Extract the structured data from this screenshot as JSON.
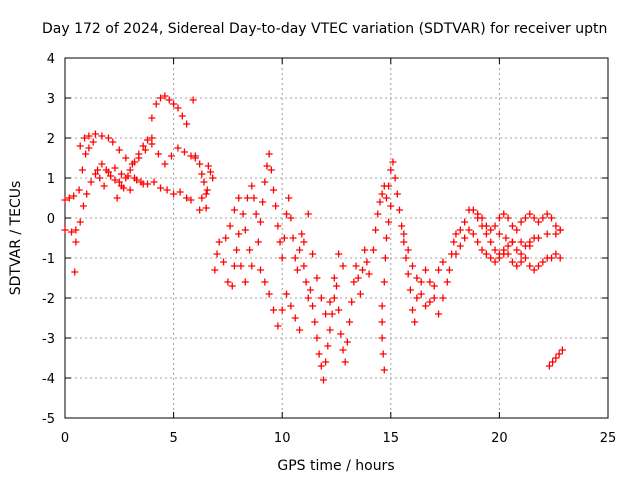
{
  "chart_data": {
    "type": "scatter",
    "title": "Day 172 of 2024, Sidereal Day-to-day VTEC variation (SDTVAR) for receiver uptn",
    "xlabel": "GPS time / hours",
    "ylabel": "SDTVAR / TECUs",
    "xlim": [
      0,
      25
    ],
    "ylim": [
      -5,
      4
    ],
    "xticks": [
      "0",
      "5",
      "10",
      "15",
      "20",
      "25"
    ],
    "yticks": [
      "4",
      "3",
      "2",
      "1",
      "0",
      "-1",
      "-2",
      "-3",
      "-4",
      "-5"
    ],
    "grid": true,
    "marker": "+",
    "color": "#ff0000",
    "series": [
      {
        "name": "SDTVAR",
        "points": [
          [
            0.0,
            -0.3
          ],
          [
            0.3,
            -0.35
          ],
          [
            0.5,
            -0.3
          ],
          [
            0.7,
            -0.1
          ],
          [
            0.85,
            0.3
          ],
          [
            1.0,
            0.6
          ],
          [
            1.2,
            0.9
          ],
          [
            1.4,
            1.1
          ],
          [
            1.6,
            1.0
          ],
          [
            1.8,
            0.8
          ],
          [
            0.0,
            0.45
          ],
          [
            0.2,
            0.5
          ],
          [
            0.4,
            0.55
          ],
          [
            0.5,
            -0.6
          ],
          [
            0.45,
            -1.35
          ],
          [
            0.65,
            0.7
          ],
          [
            0.8,
            1.2
          ],
          [
            0.95,
            1.6
          ],
          [
            1.1,
            1.75
          ],
          [
            1.3,
            1.9
          ],
          [
            0.7,
            1.8
          ],
          [
            0.9,
            2.0
          ],
          [
            1.1,
            2.05
          ],
          [
            1.4,
            2.1
          ],
          [
            1.7,
            2.05
          ],
          [
            2.0,
            2.0
          ],
          [
            2.2,
            1.9
          ],
          [
            2.5,
            1.7
          ],
          [
            2.8,
            1.5
          ],
          [
            3.1,
            1.35
          ],
          [
            3.4,
            1.5
          ],
          [
            3.7,
            1.7
          ],
          [
            4.0,
            1.85
          ],
          [
            4.3,
            1.6
          ],
          [
            4.6,
            1.35
          ],
          [
            4.9,
            1.55
          ],
          [
            5.2,
            1.75
          ],
          [
            5.5,
            1.65
          ],
          [
            5.8,
            1.55
          ],
          [
            6.0,
            1.5
          ],
          [
            2.0,
            1.15
          ],
          [
            2.3,
            1.25
          ],
          [
            2.6,
            1.1
          ],
          [
            2.9,
            1.05
          ],
          [
            3.2,
            1.0
          ],
          [
            3.5,
            0.9
          ],
          [
            3.8,
            0.85
          ],
          [
            4.1,
            0.9
          ],
          [
            4.4,
            0.75
          ],
          [
            4.7,
            0.7
          ],
          [
            5.0,
            0.6
          ],
          [
            5.3,
            0.65
          ],
          [
            5.6,
            0.5
          ],
          [
            5.8,
            0.45
          ],
          [
            2.4,
            0.5
          ],
          [
            2.6,
            0.8
          ],
          [
            2.8,
            1.0
          ],
          [
            3.0,
            1.2
          ],
          [
            3.2,
            1.4
          ],
          [
            3.4,
            1.6
          ],
          [
            3.6,
            1.8
          ],
          [
            3.8,
            1.95
          ],
          [
            4.0,
            2.0
          ],
          [
            1.5,
            1.2
          ],
          [
            1.7,
            1.35
          ],
          [
            1.9,
            1.2
          ],
          [
            2.1,
            1.05
          ],
          [
            2.3,
            0.95
          ],
          [
            2.5,
            0.9
          ],
          [
            2.7,
            0.75
          ],
          [
            3.0,
            0.7
          ],
          [
            3.3,
            0.95
          ],
          [
            3.6,
            0.85
          ],
          [
            4.0,
            2.5
          ],
          [
            4.2,
            2.85
          ],
          [
            4.4,
            3.0
          ],
          [
            4.6,
            3.05
          ],
          [
            4.8,
            2.95
          ],
          [
            5.0,
            2.85
          ],
          [
            5.2,
            2.75
          ],
          [
            5.4,
            2.55
          ],
          [
            5.6,
            2.35
          ],
          [
            5.9,
            2.95
          ],
          [
            6.0,
            1.55
          ],
          [
            6.2,
            1.35
          ],
          [
            6.3,
            1.1
          ],
          [
            6.4,
            0.9
          ],
          [
            6.5,
            0.6
          ],
          [
            6.2,
            0.2
          ],
          [
            6.3,
            0.5
          ],
          [
            6.6,
            1.3
          ],
          [
            6.7,
            1.15
          ],
          [
            6.8,
            1.0
          ],
          [
            6.5,
            0.25
          ],
          [
            6.55,
            0.7
          ],
          [
            6.9,
            -1.3
          ],
          [
            7.0,
            -0.9
          ],
          [
            7.1,
            -0.6
          ],
          [
            7.3,
            -1.1
          ],
          [
            7.5,
            -1.6
          ],
          [
            7.7,
            -1.7
          ],
          [
            7.8,
            -1.2
          ],
          [
            7.9,
            -0.8
          ],
          [
            8.0,
            -0.4
          ],
          [
            8.2,
            0.1
          ],
          [
            8.4,
            0.5
          ],
          [
            8.6,
            0.8
          ],
          [
            8.7,
            0.5
          ],
          [
            8.8,
            0.1
          ],
          [
            7.4,
            -0.5
          ],
          [
            7.6,
            -0.2
          ],
          [
            7.8,
            0.2
          ],
          [
            8.0,
            0.5
          ],
          [
            8.3,
            -0.3
          ],
          [
            8.5,
            -0.8
          ],
          [
            8.1,
            -1.2
          ],
          [
            8.3,
            -1.6
          ],
          [
            8.6,
            -1.2
          ],
          [
            8.9,
            -0.6
          ],
          [
            9.0,
            -0.1
          ],
          [
            9.1,
            0.4
          ],
          [
            9.2,
            0.9
          ],
          [
            9.3,
            1.3
          ],
          [
            9.4,
            1.6
          ],
          [
            9.5,
            1.2
          ],
          [
            9.6,
            0.7
          ],
          [
            9.7,
            0.3
          ],
          [
            9.8,
            -0.2
          ],
          [
            9.9,
            -0.6
          ],
          [
            10.0,
            -1.0
          ],
          [
            10.1,
            -0.5
          ],
          [
            10.2,
            0.1
          ],
          [
            10.3,
            0.5
          ],
          [
            10.4,
            0.0
          ],
          [
            10.5,
            -0.5
          ],
          [
            10.6,
            -1.0
          ],
          [
            10.7,
            -1.3
          ],
          [
            10.8,
            -0.8
          ],
          [
            10.9,
            -0.4
          ],
          [
            11.0,
            -1.2
          ],
          [
            11.1,
            -1.6
          ],
          [
            11.2,
            -2.0
          ],
          [
            11.3,
            -1.8
          ],
          [
            11.4,
            -2.2
          ],
          [
            11.5,
            -2.6
          ],
          [
            11.6,
            -3.0
          ],
          [
            11.7,
            -3.4
          ],
          [
            11.8,
            -3.7
          ],
          [
            11.9,
            -4.05
          ],
          [
            12.0,
            -3.6
          ],
          [
            12.1,
            -3.2
          ],
          [
            12.2,
            -2.8
          ],
          [
            12.3,
            -2.4
          ],
          [
            12.4,
            -2.0
          ],
          [
            12.5,
            -1.7
          ],
          [
            12.6,
            -2.3
          ],
          [
            12.7,
            -2.9
          ],
          [
            12.8,
            -3.3
          ],
          [
            12.9,
            -3.6
          ],
          [
            13.0,
            -3.1
          ],
          [
            13.1,
            -2.6
          ],
          [
            13.2,
            -2.1
          ],
          [
            13.3,
            -1.6
          ],
          [
            13.4,
            -1.2
          ],
          [
            13.5,
            -1.5
          ],
          [
            13.6,
            -1.9
          ],
          [
            13.7,
            -1.3
          ],
          [
            13.8,
            -0.8
          ],
          [
            13.9,
            -1.1
          ],
          [
            14.0,
            -1.4
          ],
          [
            11.0,
            -0.6
          ],
          [
            11.2,
            0.1
          ],
          [
            11.4,
            -0.9
          ],
          [
            11.6,
            -1.5
          ],
          [
            11.8,
            -2.0
          ],
          [
            12.0,
            -2.4
          ],
          [
            12.2,
            -2.1
          ],
          [
            12.4,
            -1.5
          ],
          [
            12.6,
            -0.9
          ],
          [
            12.8,
            -1.2
          ],
          [
            9.0,
            -1.3
          ],
          [
            9.2,
            -1.6
          ],
          [
            9.4,
            -1.9
          ],
          [
            9.6,
            -2.3
          ],
          [
            9.8,
            -2.7
          ],
          [
            10.0,
            -2.3
          ],
          [
            10.2,
            -1.9
          ],
          [
            10.4,
            -2.2
          ],
          [
            10.6,
            -2.5
          ],
          [
            10.8,
            -2.8
          ],
          [
            14.2,
            -0.8
          ],
          [
            14.3,
            -0.3
          ],
          [
            14.4,
            0.1
          ],
          [
            14.5,
            0.4
          ],
          [
            14.6,
            0.6
          ],
          [
            14.7,
            0.8
          ],
          [
            14.8,
            0.5
          ],
          [
            14.9,
            0.8
          ],
          [
            15.0,
            1.2
          ],
          [
            15.1,
            1.4
          ],
          [
            15.2,
            1.0
          ],
          [
            15.3,
            0.6
          ],
          [
            15.4,
            0.2
          ],
          [
            15.5,
            -0.2
          ],
          [
            15.6,
            -0.6
          ],
          [
            15.7,
            -1.0
          ],
          [
            15.8,
            -1.4
          ],
          [
            15.9,
            -1.8
          ],
          [
            16.0,
            -2.3
          ],
          [
            16.1,
            -2.6
          ],
          [
            14.6,
            -2.6
          ],
          [
            14.6,
            -3.0
          ],
          [
            14.65,
            -3.4
          ],
          [
            14.7,
            -3.8
          ],
          [
            14.6,
            -2.2
          ],
          [
            14.7,
            -1.6
          ],
          [
            14.75,
            -1.0
          ],
          [
            14.8,
            -0.5
          ],
          [
            14.9,
            -0.1
          ],
          [
            15.0,
            0.3
          ],
          [
            16.2,
            -2.0
          ],
          [
            16.4,
            -1.6
          ],
          [
            16.6,
            -1.3
          ],
          [
            16.8,
            -1.6
          ],
          [
            17.0,
            -2.0
          ],
          [
            17.2,
            -2.4
          ],
          [
            17.4,
            -2.0
          ],
          [
            17.6,
            -1.6
          ],
          [
            17.7,
            -1.3
          ],
          [
            17.8,
            -0.9
          ],
          [
            15.6,
            -0.4
          ],
          [
            15.8,
            -0.8
          ],
          [
            16.0,
            -1.2
          ],
          [
            16.2,
            -1.5
          ],
          [
            16.4,
            -1.9
          ],
          [
            16.6,
            -2.2
          ],
          [
            16.8,
            -2.1
          ],
          [
            17.0,
            -1.7
          ],
          [
            17.2,
            -1.3
          ],
          [
            17.4,
            -1.1
          ],
          [
            17.9,
            -0.6
          ],
          [
            18.0,
            -0.4
          ],
          [
            18.2,
            -0.3
          ],
          [
            18.4,
            -0.1
          ],
          [
            18.6,
            0.2
          ],
          [
            18.8,
            0.2
          ],
          [
            19.0,
            0.0
          ],
          [
            19.2,
            -0.2
          ],
          [
            19.4,
            -0.4
          ],
          [
            19.6,
            -0.6
          ],
          [
            19.8,
            -0.8
          ],
          [
            20.0,
            -0.9
          ],
          [
            20.2,
            -0.9
          ],
          [
            20.4,
            -0.7
          ],
          [
            20.6,
            -0.6
          ],
          [
            20.8,
            -0.8
          ],
          [
            21.0,
            -0.9
          ],
          [
            21.2,
            -0.7
          ],
          [
            21.4,
            -0.6
          ],
          [
            21.6,
            -0.5
          ],
          [
            18.0,
            -0.9
          ],
          [
            18.2,
            -0.7
          ],
          [
            18.4,
            -0.5
          ],
          [
            18.6,
            -0.3
          ],
          [
            18.8,
            -0.4
          ],
          [
            19.0,
            -0.6
          ],
          [
            19.2,
            -0.8
          ],
          [
            19.4,
            -0.9
          ],
          [
            19.6,
            -1.0
          ],
          [
            19.8,
            -1.1
          ],
          [
            20.0,
            -1.0
          ],
          [
            20.2,
            -0.8
          ],
          [
            20.4,
            -0.9
          ],
          [
            20.6,
            -1.1
          ],
          [
            20.8,
            -1.2
          ],
          [
            21.0,
            -1.1
          ],
          [
            21.2,
            -1.0
          ],
          [
            21.4,
            -1.2
          ],
          [
            21.6,
            -1.3
          ],
          [
            21.8,
            -1.2
          ],
          [
            22.0,
            -1.1
          ],
          [
            22.2,
            -1.0
          ],
          [
            22.4,
            -1.0
          ],
          [
            22.6,
            -0.9
          ],
          [
            22.8,
            -1.0
          ],
          [
            19.0,
            0.1
          ],
          [
            19.2,
            0.0
          ],
          [
            19.4,
            -0.2
          ],
          [
            19.6,
            -0.3
          ],
          [
            19.8,
            -0.2
          ],
          [
            20.0,
            0.0
          ],
          [
            20.2,
            0.1
          ],
          [
            20.4,
            0.0
          ],
          [
            20.6,
            -0.2
          ],
          [
            20.8,
            -0.3
          ],
          [
            21.0,
            -0.1
          ],
          [
            21.2,
            0.0
          ],
          [
            21.4,
            0.1
          ],
          [
            21.6,
            0.0
          ],
          [
            21.8,
            -0.1
          ],
          [
            22.0,
            0.0
          ],
          [
            22.2,
            0.1
          ],
          [
            22.4,
            0.0
          ],
          [
            22.6,
            -0.2
          ],
          [
            22.8,
            -0.3
          ],
          [
            20.0,
            -0.4
          ],
          [
            20.3,
            -0.5
          ],
          [
            20.6,
            -0.6
          ],
          [
            21.0,
            -0.6
          ],
          [
            21.4,
            -0.7
          ],
          [
            21.8,
            -0.5
          ],
          [
            22.2,
            -0.4
          ],
          [
            22.6,
            -0.4
          ],
          [
            22.8,
            -0.3
          ],
          [
            22.3,
            -3.7
          ],
          [
            22.45,
            -3.6
          ],
          [
            22.6,
            -3.5
          ],
          [
            22.75,
            -3.4
          ],
          [
            22.9,
            -3.3
          ]
        ]
      }
    ]
  }
}
